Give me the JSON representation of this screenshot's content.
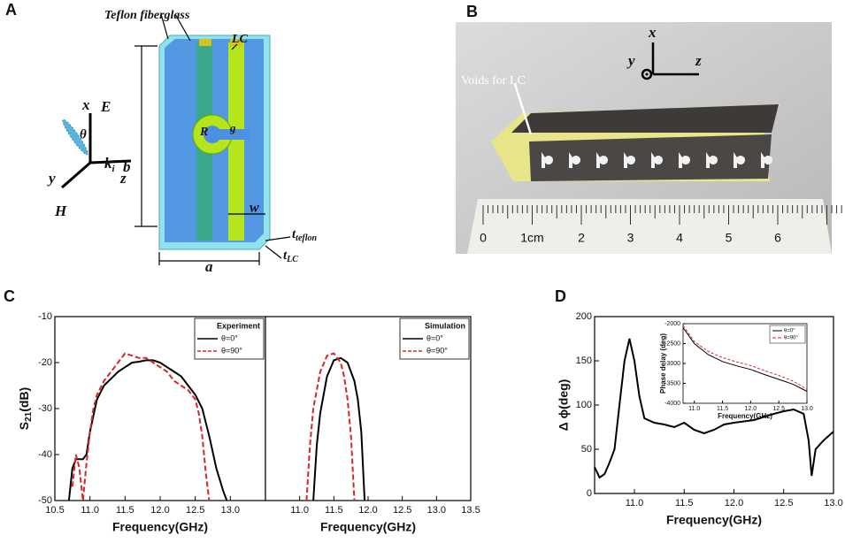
{
  "panel_labels": [
    "A",
    "B",
    "C",
    "D"
  ],
  "diagram": {
    "material_label": "Teflon fiberglass",
    "lc_label": "LC",
    "x_axis": "x",
    "e_field": "E",
    "angle": "θ",
    "k": "k",
    "k_sub": "i",
    "y_axis": "y",
    "z_axis": "z",
    "h_field": "H",
    "height": "b",
    "radius": "R",
    "gap": "g",
    "width": "w",
    "t": "t",
    "t_teflon_sub": "teflon",
    "t_lc_sub": "LC",
    "length": "a"
  },
  "photo": {
    "x_axis": "x",
    "y_axis": "y",
    "z_axis": "z",
    "annotation": "Voids for LC",
    "ruler_labels": [
      "0",
      "1cm",
      "2",
      "3",
      "4",
      "5",
      "6"
    ]
  },
  "chart_data": [
    {
      "type": "line",
      "x_label": "Frequency(GHz)",
      "y_label": {
        "text": "S",
        "subscript": "21",
        "unit": "(dB)"
      },
      "legend_title": "Experiment",
      "legend": "upper right",
      "xlim": [
        10.5,
        13.5
      ],
      "xticks": [
        10.5,
        {
          "value": 11,
          "label": "11.0"
        },
        11.5,
        {
          "value": 12,
          "label": "12.0"
        },
        12.5,
        {
          "value": 13,
          "label": "13.0"
        }
      ],
      "ylim": [
        -50,
        -10
      ],
      "yticks": [
        -50,
        -40,
        -30,
        -20,
        -10
      ],
      "series": [
        {
          "name": "θ=0°",
          "color": "#000000",
          "style": "solid",
          "x": [
            10.7,
            10.75,
            10.8,
            10.9,
            10.95,
            11.0,
            11.1,
            11.2,
            11.3,
            11.4,
            11.5,
            11.6,
            11.7,
            11.8,
            11.9,
            12.0,
            12.1,
            12.2,
            12.3,
            12.4,
            12.5,
            12.6,
            12.7,
            12.8,
            12.9,
            12.95
          ],
          "values": [
            -50,
            -43,
            -41,
            -41,
            -40,
            -35,
            -28,
            -25,
            -23.5,
            -22,
            -21,
            -20,
            -19.8,
            -19.5,
            -19.5,
            -20,
            -21,
            -22,
            -23,
            -25,
            -27,
            -30,
            -36,
            -43,
            -48,
            -50
          ]
        },
        {
          "name": "θ=90°",
          "color": "#d62728",
          "style": "dashed",
          "x": [
            10.75,
            10.8,
            10.85,
            10.9,
            10.95,
            11.0,
            11.05,
            11.1,
            11.2,
            11.3,
            11.4,
            11.5,
            11.6,
            11.7,
            11.8,
            11.9,
            12.0,
            12.1,
            12.2,
            12.3,
            12.4,
            12.5,
            12.55,
            12.6,
            12.65,
            12.7
          ],
          "values": [
            -47,
            -40,
            -43,
            -50,
            -42,
            -35,
            -30,
            -27,
            -24,
            -22,
            -20,
            -18,
            -18.5,
            -19,
            -19,
            -20,
            -21,
            -22,
            -24,
            -25,
            -26,
            -28,
            -31,
            -36,
            -44,
            -50
          ]
        }
      ]
    },
    {
      "type": "line",
      "x_label": "Frequency(GHz)",
      "legend_title": "Simulation",
      "legend": "upper right",
      "xlim": [
        10.5,
        13.5
      ],
      "xticks": [
        {
          "value": 11,
          "label": "11.0"
        },
        11.5,
        {
          "value": 12,
          "label": "12.0"
        },
        12.5,
        {
          "value": 13,
          "label": "13.0"
        },
        13.5
      ],
      "ylim": [
        -50,
        -10
      ],
      "series": [
        {
          "name": "θ=0°",
          "color": "#000000",
          "style": "solid",
          "x": [
            11.2,
            11.25,
            11.3,
            11.4,
            11.5,
            11.6,
            11.7,
            11.8,
            11.85,
            11.9,
            11.95
          ],
          "values": [
            -50,
            -38,
            -31,
            -23,
            -19.5,
            -19,
            -20,
            -24,
            -28,
            -35,
            -50
          ]
        },
        {
          "name": "θ=90°",
          "color": "#d62728",
          "style": "dashed",
          "x": [
            11.1,
            11.15,
            11.2,
            11.3,
            11.4,
            11.5,
            11.6,
            11.65,
            11.7,
            11.75,
            11.8
          ],
          "values": [
            -50,
            -38,
            -30,
            -22,
            -18.5,
            -18,
            -20,
            -23,
            -28,
            -36,
            -50
          ]
        }
      ]
    },
    {
      "type": "line",
      "x_label": "Frequency(GHz)",
      "y_label": "Δ ϕ(deg)",
      "xlim": [
        10.6,
        13.0
      ],
      "xticks": [
        {
          "value": 11,
          "label": "11.0"
        },
        11.5,
        {
          "value": 12,
          "label": "12.0"
        },
        12.5,
        {
          "value": 13,
          "label": "13.0"
        }
      ],
      "ylim": [
        0,
        200
      ],
      "yticks": [
        0,
        50,
        100,
        150,
        200
      ],
      "series": [
        {
          "color": "#000000",
          "style": "solid",
          "x": [
            10.6,
            10.65,
            10.7,
            10.75,
            10.8,
            10.85,
            10.9,
            10.95,
            11.0,
            11.05,
            11.1,
            11.2,
            11.3,
            11.4,
            11.5,
            11.6,
            11.7,
            11.8,
            11.9,
            12.0,
            12.2,
            12.4,
            12.5,
            12.6,
            12.7,
            12.75,
            12.78,
            12.82,
            12.9,
            13.0
          ],
          "values": [
            30,
            18,
            22,
            35,
            50,
            100,
            150,
            175,
            150,
            110,
            85,
            80,
            78,
            75,
            80,
            72,
            68,
            72,
            78,
            80,
            83,
            90,
            93,
            95,
            90,
            60,
            20,
            50,
            60,
            70
          ]
        }
      ]
    },
    {
      "type": "line",
      "x_label": "Frequency(GHz)",
      "y_label": "Phase delay (deg)",
      "legend": "upper right",
      "xlim": [
        10.8,
        13.0
      ],
      "xticks": [
        {
          "value": 11,
          "label": "11.0"
        },
        11.5,
        {
          "value": 12,
          "label": "12.0"
        },
        12.5,
        {
          "value": 13,
          "label": "13.0"
        }
      ],
      "ylim": [
        -4000,
        -2000
      ],
      "yticks": [
        -4000,
        -3500,
        -3000,
        -2500,
        -2000
      ],
      "series": [
        {
          "name": "θ=0°",
          "color": "#000000",
          "style": "solid",
          "x": [
            10.8,
            11.0,
            11.25,
            11.5,
            11.75,
            12.0,
            12.25,
            12.5,
            12.75,
            13.0
          ],
          "values": [
            -2100,
            -2500,
            -2780,
            -2950,
            -3060,
            -3150,
            -3280,
            -3400,
            -3520,
            -3700
          ]
        },
        {
          "name": "θ=90°",
          "color": "#d62728",
          "style": "dashed",
          "x": [
            10.8,
            11.0,
            11.25,
            11.5,
            11.75,
            12.0,
            12.25,
            12.5,
            12.75,
            13.0
          ],
          "values": [
            -2050,
            -2450,
            -2700,
            -2850,
            -2960,
            -3050,
            -3180,
            -3300,
            -3440,
            -3650
          ]
        }
      ]
    }
  ]
}
